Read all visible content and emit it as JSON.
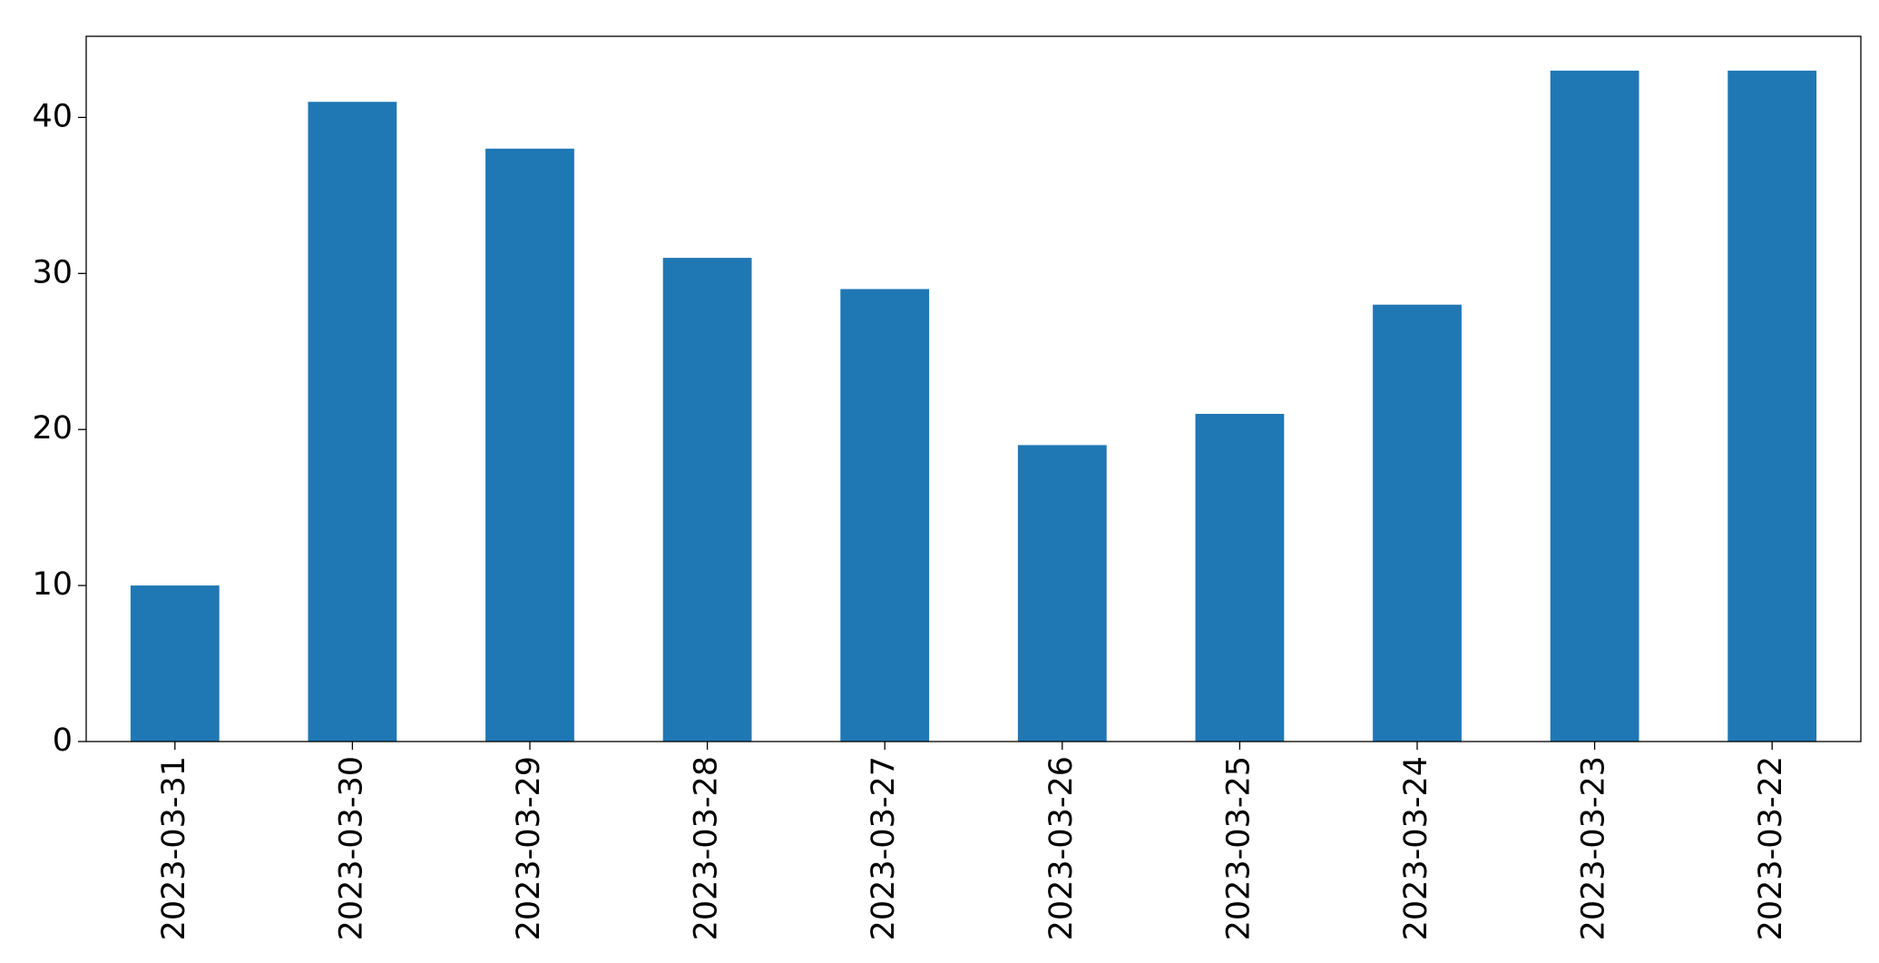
{
  "chart_data": {
    "type": "bar",
    "categories": [
      "2023-03-31",
      "2023-03-30",
      "2023-03-29",
      "2023-03-28",
      "2023-03-27",
      "2023-03-26",
      "2023-03-25",
      "2023-03-24",
      "2023-03-23",
      "2023-03-22"
    ],
    "values": [
      10,
      41,
      38,
      31,
      29,
      19,
      21,
      28,
      43,
      43
    ],
    "color": "#1f77b4",
    "ylim": [
      0,
      45.2
    ],
    "yticks": [
      0,
      10,
      20,
      30,
      40
    ],
    "grid": false
  }
}
